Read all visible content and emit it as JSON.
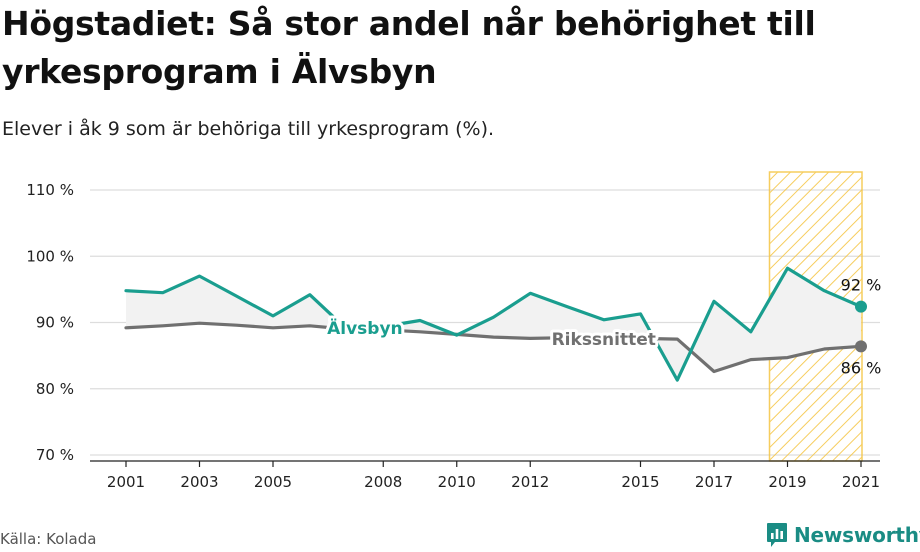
{
  "header": {
    "title": "Högstadiet: Så stor andel når behörighet till yrkesprogram i Älvsbyn",
    "subtitle": "Elever i åk 9 som är behöriga till yrkesprogram (%)."
  },
  "footer": {
    "source": "Källa: Kolada",
    "brand": "Newsworthy"
  },
  "colors": {
    "local": "#1a9e8f",
    "national": "#707070",
    "highlight": "#f5c542",
    "gap_fill": "#f2f2f2",
    "grid": "#dddddd"
  },
  "chart_data": {
    "type": "line",
    "title": "Högstadiet: Så stor andel når behörighet till yrkesprogram i Älvsbyn",
    "subtitle": "Elever i åk 9 som är behöriga till yrkesprogram (%).",
    "xlabel": "",
    "ylabel": "",
    "ylim": [
      70,
      110
    ],
    "xlim": [
      2001,
      2021
    ],
    "yticks": [
      {
        "value": 70,
        "label": "70 %"
      },
      {
        "value": 80,
        "label": "80 %"
      },
      {
        "value": 90,
        "label": "90 %"
      },
      {
        "value": 100,
        "label": "100 %"
      },
      {
        "value": 110,
        "label": "110 %"
      }
    ],
    "xticks": [
      {
        "value": 2001,
        "label": "2001"
      },
      {
        "value": 2003,
        "label": "2003"
      },
      {
        "value": 2005,
        "label": "2005"
      },
      {
        "value": 2008,
        "label": "2008"
      },
      {
        "value": 2010,
        "label": "2010"
      },
      {
        "value": 2012,
        "label": "2012"
      },
      {
        "value": 2015,
        "label": "2015"
      },
      {
        "value": 2017,
        "label": "2017"
      },
      {
        "value": 2019,
        "label": "2019"
      },
      {
        "value": 2021,
        "label": "2021"
      }
    ],
    "grid": true,
    "highlight_range": [
      2019,
      2021
    ],
    "x": [
      2001,
      2002,
      2003,
      2004,
      2005,
      2006,
      2007,
      2008,
      2009,
      2010,
      2011,
      2012,
      2013,
      2014,
      2015,
      2016,
      2017,
      2018,
      2019,
      2020,
      2021
    ],
    "series": [
      {
        "name": "Älvsbyn",
        "color": "#1a9e8f",
        "values": [
          94.8,
          94.5,
          97.0,
          94.0,
          91.0,
          94.2,
          89.0,
          89.4,
          90.3,
          88.1,
          90.8,
          94.4,
          92.4,
          90.4,
          91.3,
          81.3,
          93.2,
          88.6,
          98.2,
          94.8,
          92.4
        ],
        "end_label": "92 %",
        "label_at": 2007.5
      },
      {
        "name": "Rikssnittet",
        "color": "#707070",
        "values": [
          89.2,
          89.5,
          89.9,
          89.6,
          89.2,
          89.5,
          89.0,
          88.9,
          88.6,
          88.2,
          87.8,
          87.6,
          87.7,
          87.5,
          87.6,
          87.5,
          82.6,
          84.4,
          84.7,
          86.0,
          86.4
        ],
        "end_label": "86 %",
        "label_at": 2014.0
      }
    ]
  }
}
